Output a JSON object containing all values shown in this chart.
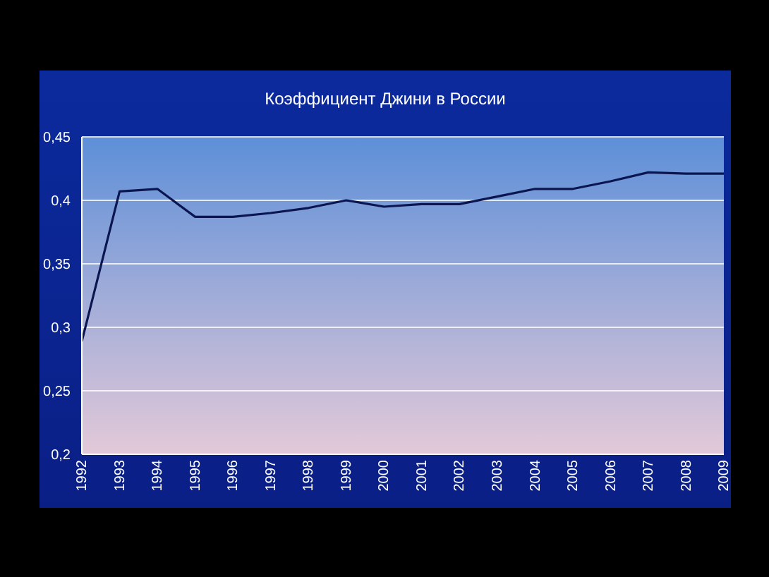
{
  "chart_data": {
    "type": "line",
    "title": "Коэффициент Джини в России",
    "categories": [
      "1992",
      "1993",
      "1994",
      "1995",
      "1996",
      "1997",
      "1998",
      "1999",
      "2000",
      "2001",
      "2002",
      "2003",
      "2004",
      "2005",
      "2006",
      "2007",
      "2008",
      "2009"
    ],
    "series": [
      {
        "color": "#0b1650",
        "values": [
          0.289,
          0.407,
          0.409,
          0.387,
          0.387,
          0.39,
          0.394,
          0.4,
          0.395,
          0.397,
          0.397,
          0.403,
          0.409,
          0.409,
          0.415,
          0.422,
          0.421,
          0.421
        ]
      }
    ],
    "ylim": [
      0.2,
      0.45
    ],
    "yticks": [
      {
        "value": 0.2,
        "label": "0,2"
      },
      {
        "value": 0.25,
        "label": "0,25"
      },
      {
        "value": 0.3,
        "label": "0,3"
      },
      {
        "value": 0.35,
        "label": "0,35"
      },
      {
        "value": 0.4,
        "label": "0,4"
      },
      {
        "value": 0.45,
        "label": "0,45"
      }
    ],
    "grid": "y",
    "legend": false,
    "marker": "none",
    "line_style": "solid"
  }
}
